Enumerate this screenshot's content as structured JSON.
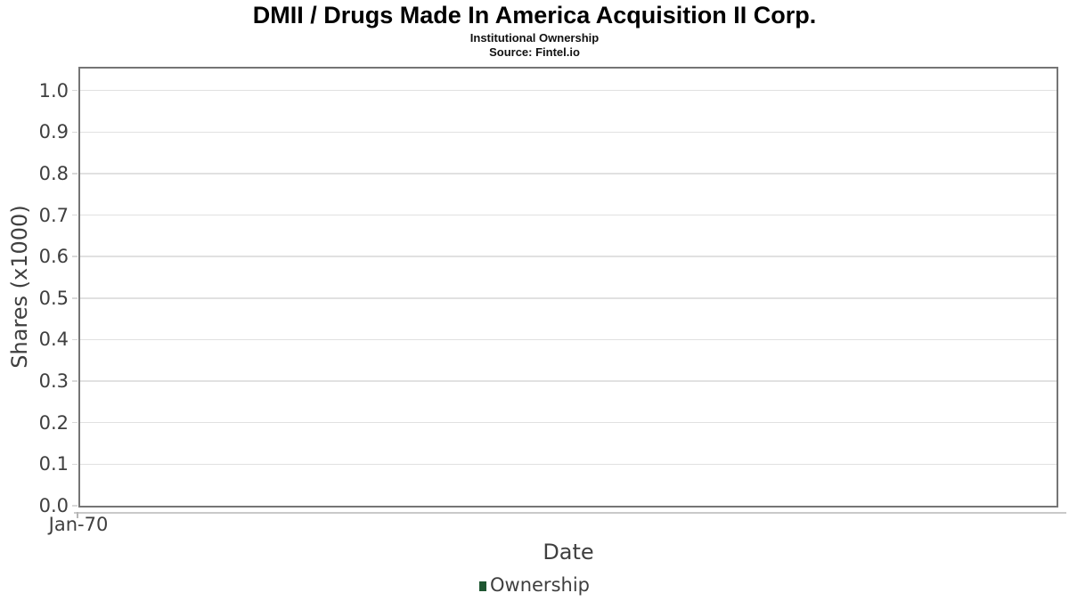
{
  "header": {
    "title": "DMII / Drugs Made In America Acquisition II Corp.",
    "subtitle": "Institutional Ownership",
    "source": "Source: Fintel.io"
  },
  "chart_data": {
    "type": "line",
    "title": "DMII / Drugs Made In America Acquisition II Corp.",
    "subtitle": "Institutional Ownership",
    "source": "Source: Fintel.io",
    "xlabel": "Date",
    "ylabel": "Shares (x1000)",
    "x_ticks": [
      "Jan-70"
    ],
    "y_ticks": [
      0.0,
      0.1,
      0.2,
      0.3,
      0.4,
      0.5,
      0.6,
      0.7,
      0.8,
      0.9,
      1.0
    ],
    "y_tick_format_decimals": 1,
    "ylim": [
      0,
      1.053
    ],
    "grid": true,
    "legend_position": "bottom-center",
    "legend": [
      {
        "label": "Ownership",
        "color": "#1e5631"
      }
    ],
    "series": [
      {
        "name": "Ownership",
        "x": [],
        "y": []
      }
    ]
  },
  "colors": {
    "background": "#ffffff",
    "title_text": "#000000",
    "axis_text": "#3f3f3f",
    "plot_border": "#757575",
    "gridline": "#e1e1e1",
    "axis_line": "#c9c9c9",
    "legend_marker": "#1e5631"
  }
}
